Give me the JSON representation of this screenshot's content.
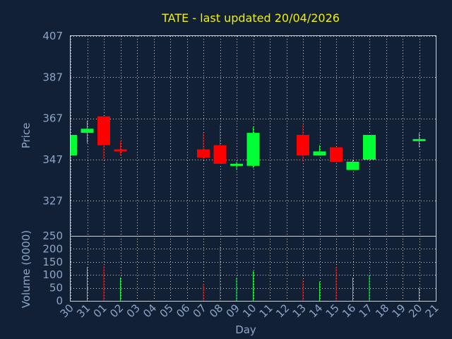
{
  "chart_data": [
    {
      "type": "candlestick",
      "title": "TATE - last updated 20/04/2026",
      "ylabel": "Price",
      "ylim": [
        310,
        407
      ],
      "yticks": [
        327,
        347,
        367,
        387,
        407
      ],
      "grid": true,
      "colors": {
        "up": "#00ff33",
        "down": "#ff0000",
        "background": "#112035",
        "title": "#f0f000",
        "text": "#8aa6c8"
      },
      "x": [
        "30",
        "31",
        "01",
        "02",
        "03",
        "04",
        "05",
        "06",
        "07",
        "08",
        "09",
        "10",
        "11",
        "12",
        "13",
        "14",
        "15",
        "16",
        "17",
        "18",
        "19",
        "20",
        "21"
      ],
      "candles": [
        {
          "x": "30",
          "open": 349,
          "close": 359,
          "high": 359,
          "low": 349
        },
        {
          "x": "31",
          "open": 360,
          "close": 362,
          "high": 366,
          "low": 355
        },
        {
          "x": "01",
          "open": 368,
          "close": 354,
          "high": 368,
          "low": 347
        },
        {
          "x": "02",
          "open": 352,
          "close": 351,
          "high": 356,
          "low": 349
        },
        {
          "x": "07",
          "open": 352,
          "close": 348,
          "high": 360,
          "low": 347
        },
        {
          "x": "08",
          "open": 354,
          "close": 345,
          "high": 364,
          "low": 345
        },
        {
          "x": "09",
          "open": 344,
          "close": 345,
          "high": 346,
          "low": 342
        },
        {
          "x": "10",
          "open": 344,
          "close": 360,
          "high": 363,
          "low": 343
        },
        {
          "x": "13",
          "open": 359,
          "close": 349,
          "high": 364,
          "low": 346
        },
        {
          "x": "14",
          "open": 349,
          "close": 351,
          "high": 354,
          "low": 349
        },
        {
          "x": "15",
          "open": 353,
          "close": 346,
          "high": 353,
          "low": 346
        },
        {
          "x": "16",
          "open": 342,
          "close": 346,
          "high": 347,
          "low": 342
        },
        {
          "x": "17",
          "open": 347,
          "close": 359,
          "high": 359,
          "low": 347
        },
        {
          "x": "20",
          "open": 356,
          "close": 357,
          "high": 360,
          "low": 353
        }
      ]
    },
    {
      "type": "bar",
      "xlabel": "Day",
      "ylabel": "Volume (0000)",
      "ylim": [
        0,
        250
      ],
      "yticks": [
        0,
        50,
        100,
        150,
        200,
        250
      ],
      "categories": [
        "30",
        "31",
        "01",
        "02",
        "03",
        "04",
        "05",
        "06",
        "07",
        "08",
        "09",
        "10",
        "11",
        "12",
        "13",
        "14",
        "15",
        "16",
        "17",
        "18",
        "19",
        "20",
        "21"
      ],
      "volumes": [
        {
          "x": "31",
          "value": 130,
          "color": "up"
        },
        {
          "x": "01",
          "value": 135,
          "color": "down"
        },
        {
          "x": "02",
          "value": 90,
          "color": "up"
        },
        {
          "x": "07",
          "value": 65,
          "color": "down"
        },
        {
          "x": "08",
          "value": 210,
          "color": "down"
        },
        {
          "x": "09",
          "value": 90,
          "color": "up"
        },
        {
          "x": "10",
          "value": 115,
          "color": "up"
        },
        {
          "x": "13",
          "value": 80,
          "color": "down"
        },
        {
          "x": "14",
          "value": 75,
          "color": "up"
        },
        {
          "x": "15",
          "value": 130,
          "color": "down"
        },
        {
          "x": "16",
          "value": 90,
          "color": "up"
        },
        {
          "x": "17",
          "value": 100,
          "color": "up"
        },
        {
          "x": "20",
          "value": 50,
          "color": "up"
        }
      ]
    }
  ]
}
